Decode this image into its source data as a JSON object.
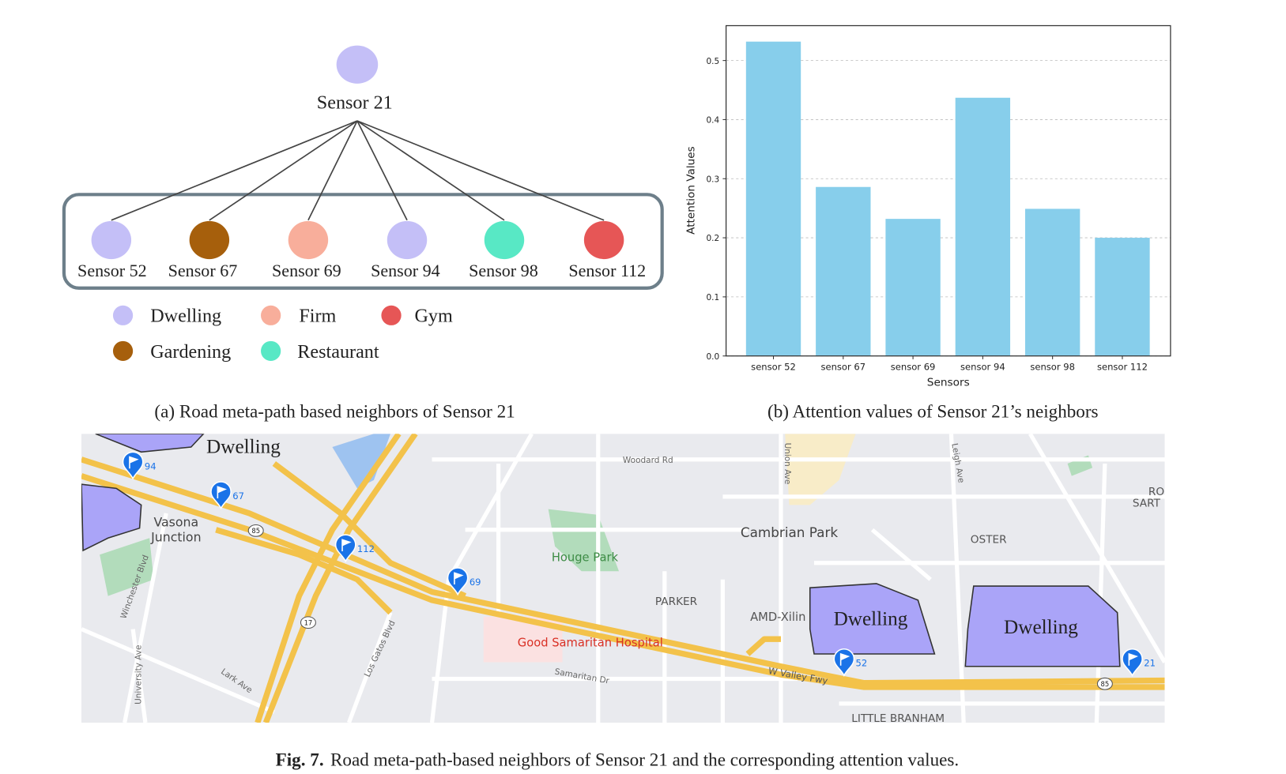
{
  "diagram": {
    "root": {
      "label": "Sensor 21",
      "category": 0
    },
    "nodes": [
      {
        "label": "Sensor 52",
        "category": 0
      },
      {
        "label": "Sensor 67",
        "category": 3
      },
      {
        "label": "Sensor 69",
        "category": 1
      },
      {
        "label": "Sensor 94",
        "category": 0
      },
      {
        "label": "Sensor 98",
        "category": 4
      },
      {
        "label": "Sensor 112",
        "category": 2
      }
    ],
    "legend": [
      {
        "label": "Dwelling",
        "color": "#c4bff7"
      },
      {
        "label": "Firm",
        "color": "#f8ae9b"
      },
      {
        "label": "Gym",
        "color": "#e65656"
      },
      {
        "label": "Gardening",
        "color": "#a65f0c"
      },
      {
        "label": "Restaurant",
        "color": "#58e8c5"
      }
    ],
    "caption": "(a) Road meta-path based neighbors of Sensor 21"
  },
  "chart_data": {
    "type": "bar",
    "categories": [
      "sensor 52",
      "sensor 67",
      "sensor 69",
      "sensor 94",
      "sensor 98",
      "sensor 112"
    ],
    "values": [
      0.532,
      0.286,
      0.232,
      0.437,
      0.249,
      0.2
    ],
    "color": "#87ceeb",
    "xlabel": "Sensors",
    "ylabel": "Attention Values",
    "ylim": [
      0,
      0.559
    ],
    "yticks": [
      {
        "value": 0,
        "label": "0.0"
      },
      0.1,
      0.2,
      0.3,
      0.4,
      0.5
    ],
    "grid": true,
    "caption": "(b) Attention values of Sensor 21’s neighbors"
  },
  "map": {
    "labels": [
      "Dwelling",
      "Dwelling",
      "Dwelling",
      "Vasona",
      "Junction",
      "Cambrian Park",
      "OSTER",
      "Houge Park",
      "PARKER",
      "AMD-Xilin",
      "Good Samaritan Hospital",
      "LITTLE BRANHAM",
      "W Valley Fwy",
      "Woodard Rd",
      "Union Ave",
      "Leigh Ave",
      "Winchester Blvd",
      "University Ave",
      "Lark Ave",
      "Los Gatos Blvd",
      "Samaritan Dr",
      "RO",
      "SART"
    ],
    "markers": [
      "94",
      "67",
      "112",
      "69",
      "52",
      "21"
    ],
    "shields": [
      "85",
      "17",
      "85"
    ]
  },
  "caption": {
    "number": "Fig. 7.",
    "text": "Road meta-path-based neighbors of Sensor 21 and the corresponding attention values."
  }
}
